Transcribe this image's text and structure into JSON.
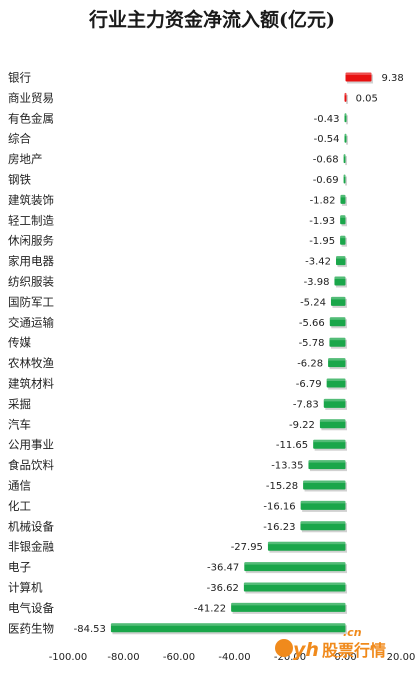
{
  "chart_data": {
    "type": "bar",
    "orientation": "horizontal",
    "title": "行业主力资金净流入额(亿元)",
    "categories": [
      "银行",
      "商业贸易",
      "有色金属",
      "综合",
      "房地产",
      "钢铁",
      "建筑装饰",
      "轻工制造",
      "休闲服务",
      "家用电器",
      "纺织服装",
      "国防军工",
      "交通运输",
      "传媒",
      "农林牧渔",
      "建筑材料",
      "采掘",
      "汽车",
      "公用事业",
      "食品饮料",
      "通信",
      "化工",
      "机械设备",
      "非银金融",
      "电子",
      "计算机",
      "电气设备",
      "医药生物"
    ],
    "values": [
      9.38,
      0.05,
      -0.43,
      -0.54,
      -0.68,
      -0.69,
      -1.82,
      -1.93,
      -1.95,
      -3.42,
      -3.98,
      -5.24,
      -5.66,
      -5.78,
      -6.28,
      -6.79,
      -7.83,
      -9.22,
      -11.65,
      -13.35,
      -15.28,
      -16.16,
      -16.23,
      -27.95,
      -36.47,
      -36.62,
      -41.22,
      -84.53
    ],
    "value_labels": [
      "9.38",
      "0.05",
      "-0.43",
      "-0.54",
      "-0.68",
      "-0.69",
      "-1.82",
      "-1.93",
      "-1.95",
      "-3.42",
      "-3.98",
      "-5.24",
      "-5.66",
      "-5.78",
      "-6.28",
      "-6.79",
      "-7.83",
      "-9.22",
      "-11.65",
      "-13.35",
      "-15.28",
      "-16.16",
      "-16.23",
      "-27.95",
      "-36.47",
      "-36.62",
      "-41.22",
      "-84.53"
    ],
    "xlim": [
      -100,
      20
    ],
    "ticks": [
      -100,
      -80,
      -60,
      -40,
      -20,
      0,
      20
    ],
    "tick_labels": [
      "-100.00",
      "-80.00",
      "-60.00",
      "-40.00",
      "-20.00",
      "0.00",
      "20.00"
    ],
    "grid": false,
    "legend": "none",
    "colors": {
      "positive": "#e81010",
      "negative": "#1aa64a"
    }
  },
  "watermark": {
    "text": "股票行情",
    "domain_text": "yh",
    "suffix": ".cn"
  }
}
